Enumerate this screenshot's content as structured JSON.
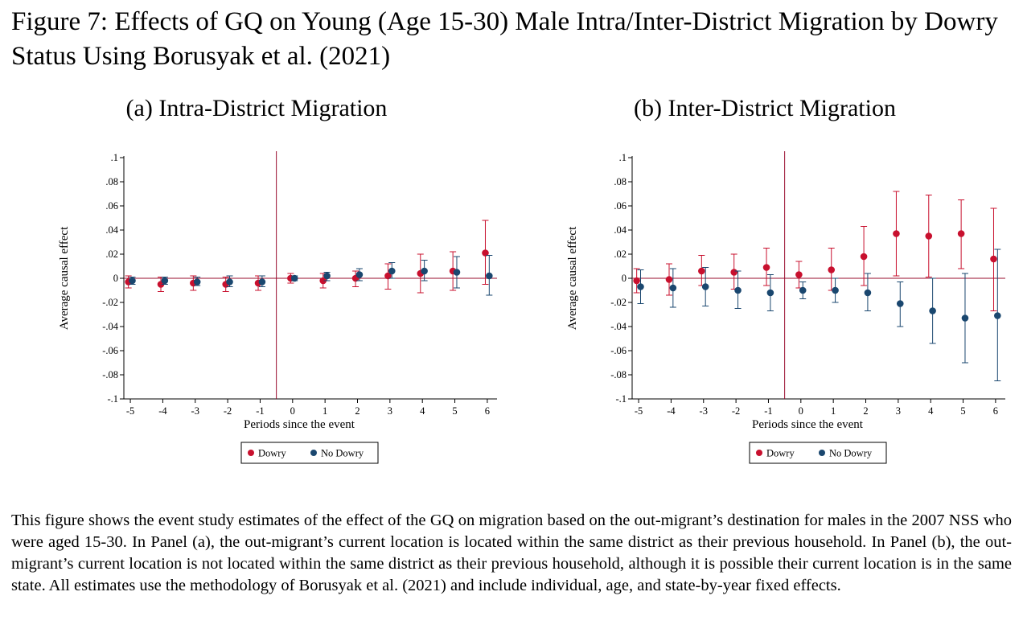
{
  "figure_title": "Figure 7: Effects of GQ on Young (Age 15-30) Male Intra/Inter-District Migration by Dowry Status Using Borusyak et al. (2021)",
  "caption": "This figure shows the event study estimates of the effect of the GQ on migration based on the out-migrant’s destination for males in the 2007 NSS who were aged 15-30. In Panel (a), the out-migrant’s current location is located within the same district as their previous household. In Panel (b), the out-migrant’s current location is not located within the same district as their previous household, although it is possible their current location is in the same state. All estimates use the methodology of Borusyak et al. (2021) and include individual, age, and state-by-year fixed effects.",
  "colors": {
    "dowry": "#c8102e",
    "no_dowry": "#1a476f",
    "event_line": "#990c2e",
    "axis": "#000000"
  },
  "chart_data": [
    {
      "type": "scatter",
      "title": "(a) Intra-District Migration",
      "xlabel": "Periods since the event",
      "ylabel": "Average causal effect",
      "x": [
        -5,
        -4,
        -3,
        -2,
        -1,
        0,
        1,
        2,
        3,
        4,
        5,
        6
      ],
      "x_tick_labels": [
        "-5",
        "-4",
        "-3",
        "-2",
        "-1",
        "0",
        "1",
        "2",
        "3",
        "4",
        "5",
        "6"
      ],
      "y_ticks": [
        -0.1,
        -0.08,
        -0.06,
        -0.04,
        -0.02,
        0,
        0.02,
        0.04,
        0.06,
        0.08,
        0.1
      ],
      "y_tick_labels": [
        "-.1",
        "-.08",
        "-.06",
        "-.04",
        "-.02",
        "0",
        ".02",
        ".04",
        ".06",
        ".08",
        ".1"
      ],
      "ylim": [
        -0.1,
        0.1
      ],
      "xlim": [
        -5.2,
        6.3
      ],
      "event_line_x": -0.5,
      "zero_line": true,
      "grid": false,
      "legend_position": "bottom-center",
      "series": [
        {
          "name": "Dowry",
          "values": [
            -0.003,
            -0.005,
            -0.004,
            -0.005,
            -0.004,
            0.0,
            -0.002,
            0.0,
            0.002,
            0.004,
            0.006,
            0.021
          ],
          "ci_low": [
            -0.008,
            -0.011,
            -0.01,
            -0.011,
            -0.01,
            -0.004,
            -0.008,
            -0.007,
            -0.009,
            -0.012,
            -0.01,
            -0.005
          ],
          "ci_high": [
            0.002,
            0.001,
            0.002,
            0.001,
            0.002,
            0.004,
            0.004,
            0.006,
            0.012,
            0.02,
            0.022,
            0.048
          ]
        },
        {
          "name": "No Dowry",
          "values": [
            -0.002,
            -0.002,
            -0.003,
            -0.003,
            -0.003,
            0.0,
            0.002,
            0.003,
            0.006,
            0.006,
            0.005,
            0.002
          ],
          "ci_low": [
            -0.005,
            -0.005,
            -0.006,
            -0.007,
            -0.007,
            -0.002,
            -0.002,
            -0.002,
            0.0,
            -0.002,
            -0.008,
            -0.014
          ],
          "ci_high": [
            0.001,
            0.001,
            0.001,
            0.002,
            0.002,
            0.002,
            0.005,
            0.008,
            0.013,
            0.015,
            0.018,
            0.019
          ]
        }
      ]
    },
    {
      "type": "scatter",
      "title": "(b) Inter-District Migration",
      "xlabel": "Periods since the event",
      "ylabel": "Average causal effect",
      "x": [
        -5,
        -4,
        -3,
        -2,
        -1,
        0,
        1,
        2,
        3,
        4,
        5,
        6
      ],
      "x_tick_labels": [
        "-5",
        "-4",
        "-3",
        "-2",
        "-1",
        "0",
        "1",
        "2",
        "3",
        "4",
        "5",
        "6"
      ],
      "y_ticks": [
        -0.1,
        -0.08,
        -0.06,
        -0.04,
        -0.02,
        0,
        0.02,
        0.04,
        0.06,
        0.08,
        0.1
      ],
      "y_tick_labels": [
        "-.1",
        "-.08",
        "-.06",
        "-.04",
        "-.02",
        "0",
        ".02",
        ".04",
        ".06",
        ".08",
        ".1"
      ],
      "ylim": [
        -0.1,
        0.1
      ],
      "xlim": [
        -5.2,
        6.3
      ],
      "event_line_x": -0.5,
      "zero_line": true,
      "grid": false,
      "legend_position": "bottom-center",
      "series": [
        {
          "name": "Dowry",
          "values": [
            -0.002,
            -0.001,
            0.006,
            0.005,
            0.009,
            0.003,
            0.007,
            0.018,
            0.037,
            0.035,
            0.037,
            0.016
          ],
          "ci_low": [
            -0.012,
            -0.014,
            -0.006,
            -0.009,
            -0.006,
            -0.008,
            -0.01,
            -0.006,
            0.002,
            0.001,
            0.008,
            -0.027
          ],
          "ci_high": [
            0.008,
            0.012,
            0.019,
            0.02,
            0.025,
            0.014,
            0.025,
            0.043,
            0.072,
            0.069,
            0.065,
            0.058
          ]
        },
        {
          "name": "No Dowry",
          "values": [
            -0.007,
            -0.008,
            -0.007,
            -0.01,
            -0.012,
            -0.01,
            -0.01,
            -0.012,
            -0.021,
            -0.027,
            -0.033,
            -0.031
          ],
          "ci_low": [
            -0.021,
            -0.024,
            -0.023,
            -0.025,
            -0.027,
            -0.017,
            -0.02,
            -0.027,
            -0.04,
            -0.054,
            -0.07,
            -0.085
          ],
          "ci_high": [
            0.007,
            0.008,
            0.009,
            0.006,
            0.003,
            -0.003,
            0.0,
            0.004,
            -0.003,
            0.0,
            0.004,
            0.024
          ]
        }
      ]
    }
  ]
}
